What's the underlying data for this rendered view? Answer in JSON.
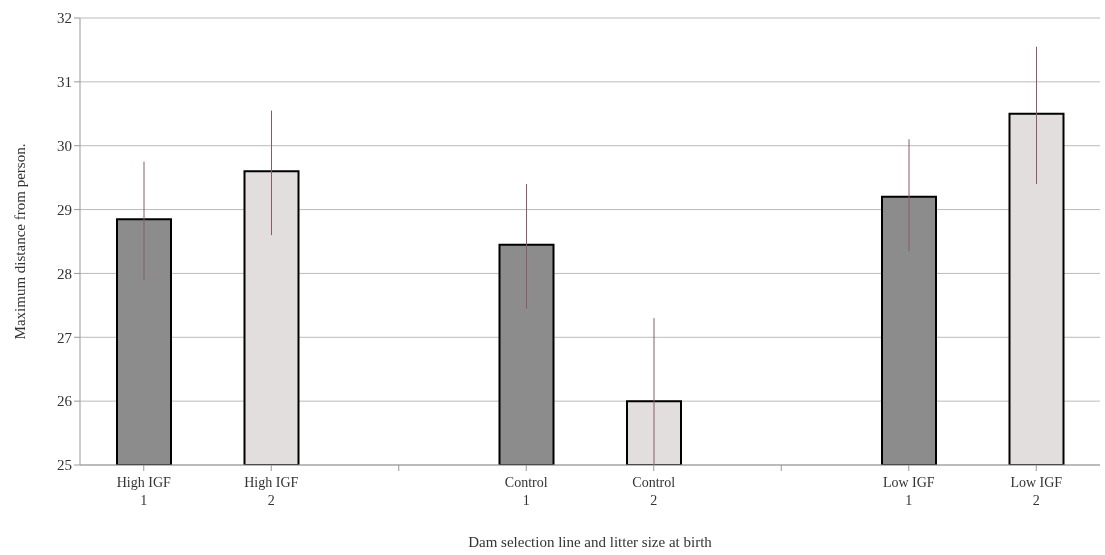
{
  "chart_data": {
    "type": "bar",
    "xlabel": "Dam selection line and litter size at birth",
    "ylabel": "Maximum distance from person.",
    "categories": [
      "High IGF\n1",
      "High IGF\n2",
      null,
      "Control\n1",
      "Control\n2",
      null,
      "Low IGF\n1",
      "Low IGF\n2"
    ],
    "values": [
      28.85,
      29.6,
      null,
      28.45,
      26.0,
      null,
      29.2,
      30.5
    ],
    "errors": [
      [
        27.9,
        29.75
      ],
      [
        28.6,
        30.55
      ],
      null,
      [
        27.45,
        29.4
      ],
      [
        25.0,
        27.3
      ],
      null,
      [
        28.35,
        30.1
      ],
      [
        29.4,
        31.55
      ]
    ],
    "colors": [
      "#8c8c8c",
      "#e3dede",
      null,
      "#8c8c8c",
      "#e3dede",
      null,
      "#8c8c8c",
      "#e3dede"
    ],
    "ylim": [
      25,
      32
    ],
    "yticks": [
      25,
      26,
      27,
      28,
      29,
      30,
      31,
      32
    ],
    "grid": "y"
  }
}
